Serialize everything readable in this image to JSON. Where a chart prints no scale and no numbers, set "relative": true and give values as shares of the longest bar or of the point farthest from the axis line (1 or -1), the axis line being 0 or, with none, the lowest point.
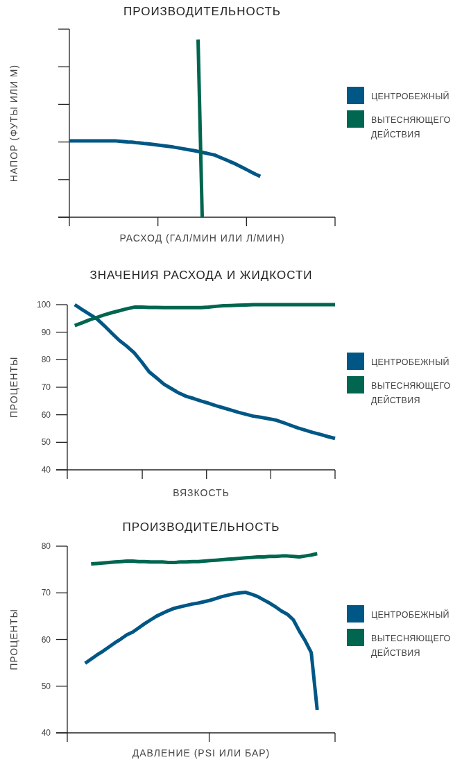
{
  "chart_data": [
    {
      "type": "line",
      "title": "ПРОИЗВОДИТЕЛЬНОСТЬ",
      "xlabel": "РАСХОД (ГАЛ/МИН ИЛИ Л/МИН)",
      "ylabel": "НАПОР (ФУТЫ ИЛИ М)",
      "relative": true,
      "tick_labels": false,
      "legend": "right",
      "line_style": "solid",
      "categories": [
        null,
        null,
        null,
        null,
        null,
        null,
        null,
        null,
        null,
        null,
        null,
        null,
        null,
        null,
        null,
        null,
        null,
        null,
        null,
        null,
        null,
        null,
        null,
        null,
        null,
        null,
        null,
        null,
        null,
        null,
        null,
        null,
        null,
        null,
        null,
        null,
        null,
        null,
        null,
        null,
        null,
        null,
        null,
        null,
        null,
        null,
        null,
        null,
        null,
        null,
        null,
        null,
        null,
        null,
        null,
        null,
        null,
        null,
        null,
        null,
        null,
        null,
        null,
        null,
        null
      ],
      "series": [
        {
          "name": "ЦЕНТРОБЕЖНЫЙ",
          "color": "#005785",
          "values": [
            0.43,
            0.43,
            0.43,
            0.43,
            0.43,
            0.43,
            0.43,
            0.43,
            0.43,
            0.43,
            0.43,
            0.43,
            0.428,
            0.426,
            0.424,
            0.423,
            0.42,
            0.418,
            0.415,
            0.413,
            0.41,
            0.407,
            0.404,
            0.401,
            0.398,
            0.395,
            0.391,
            0.387,
            0.383,
            0.379,
            0.375,
            0.37,
            0.365,
            0.36,
            0.355,
            0.35,
            0.34,
            0.33,
            0.32,
            0.31,
            0.3,
            0.288,
            0.276,
            0.264,
            0.252,
            0.24,
            0.23,
            null,
            null,
            null,
            null,
            null,
            null,
            null,
            null,
            null,
            null,
            null,
            null,
            null,
            null,
            null,
            null,
            null,
            null
          ]
        },
        {
          "name": "ВЫТЕСНЯЮЩЕГО ДЕЙСТВИЯ",
          "color": "#00664f",
          "values": [
            null,
            null,
            null,
            null,
            null,
            null,
            null,
            null,
            null,
            null,
            null,
            null,
            null,
            null,
            null,
            null,
            null,
            null,
            null,
            null,
            null,
            null,
            null,
            null,
            null,
            null,
            null,
            null,
            null,
            null,
            null,
            1,
            0,
            null,
            null,
            null,
            null,
            null,
            null,
            null,
            null,
            null,
            null,
            null,
            null,
            null,
            null,
            null,
            null,
            null,
            null,
            null,
            null,
            null,
            null,
            null,
            null,
            null,
            null,
            null,
            null,
            null,
            null,
            null,
            null
          ]
        }
      ]
    },
    {
      "type": "line",
      "title": "ЗНАЧЕНИЯ РАСХОДА И ЖИДКОСТИ",
      "xlabel": "ВЯЗКОСТЬ",
      "ylabel": "ПРОЦЕНТЫ",
      "ylim": [
        40,
        100
      ],
      "yticks": [
        40,
        50,
        60,
        70,
        80,
        90,
        100
      ],
      "tick_labels": "y",
      "legend": "right",
      "line_style": "solid",
      "categories": [
        null,
        null,
        null,
        null,
        null,
        null,
        null,
        null,
        null,
        null,
        null,
        null,
        null,
        null,
        null,
        null,
        null,
        null,
        null,
        null,
        null,
        null,
        null,
        null,
        null,
        null,
        null,
        null,
        null,
        null,
        null,
        null,
        null,
        null,
        null,
        null,
        null
      ],
      "series": [
        {
          "name": "ЦЕНТРОБЕЖНЫЙ",
          "color": "#005785",
          "values": [
            null,
            100,
            98.2,
            96.5,
            94.8,
            92.3,
            89.6,
            87,
            84.9,
            82.5,
            79.2,
            75.6,
            73.4,
            71.1,
            69.5,
            67.9,
            66.7,
            65.9,
            65,
            64.2,
            63.3,
            62.5,
            61.7,
            60.9,
            60.2,
            59.5,
            59.1,
            58.6,
            58.1,
            57.2,
            56.2,
            55.2,
            54.4,
            53.6,
            52.9,
            52.1,
            51.4
          ]
        },
        {
          "name": "ВЫТЕСНЯЮЩЕГО ДЕЙСТВИЯ",
          "color": "#00664f",
          "values": [
            null,
            92.4,
            93.4,
            94.5,
            95.4,
            96.3,
            97.1,
            97.8,
            98.5,
            99.1,
            99.1,
            99,
            99,
            98.9,
            98.9,
            98.9,
            98.9,
            98.9,
            98.9,
            99.1,
            99.4,
            99.6,
            99.7,
            99.8,
            99.9,
            100,
            100,
            100,
            100,
            100,
            100,
            100,
            100,
            100,
            100,
            100,
            100
          ]
        }
      ]
    },
    {
      "type": "line",
      "title": "ПРОИЗВОДИТЕЛЬНОСТЬ",
      "xlabel": "ДАВЛЕНИЕ (PSI ИЛИ БАР)",
      "ylabel": "ПРОЦЕНТЫ",
      "ylim": [
        40,
        80
      ],
      "yticks": [
        40,
        50,
        60,
        70,
        80
      ],
      "tick_labels": "y",
      "legend": "right",
      "line_style": "solid",
      "categories": [
        null,
        null,
        null,
        null,
        null,
        null,
        null,
        null,
        null,
        null,
        null,
        null,
        null,
        null,
        null,
        null,
        null,
        null,
        null,
        null,
        null,
        null,
        null,
        null,
        null,
        null,
        null,
        null,
        null,
        null,
        null,
        null,
        null,
        null,
        null,
        null,
        null,
        null,
        null,
        null,
        null,
        null,
        null,
        null,
        null,
        null
      ],
      "series": [
        {
          "name": "ЦЕНТРОБЕЖНЫЙ",
          "color": "#005785",
          "values": [
            null,
            null,
            null,
            54.9,
            55.8,
            56.7,
            57.5,
            58.4,
            59.3,
            60.1,
            61,
            61.6,
            62.5,
            63.4,
            64.2,
            65,
            65.6,
            66.2,
            66.7,
            67,
            67.3,
            67.6,
            67.8,
            68.1,
            68.4,
            68.8,
            69.2,
            69.5,
            69.8,
            70,
            70.1,
            69.7,
            69.2,
            68.5,
            67.8,
            67,
            66.1,
            65.4,
            64.2,
            61.8,
            59.7,
            57.2,
            44.9,
            null,
            null,
            null
          ]
        },
        {
          "name": "ВЫТЕСНЯЮЩЕГО ДЕЙСТВИЯ",
          "color": "#00664f",
          "values": [
            null,
            null,
            null,
            null,
            76.2,
            76.3,
            76.4,
            76.5,
            76.6,
            76.7,
            76.8,
            76.8,
            76.7,
            76.7,
            76.6,
            76.6,
            76.6,
            76.5,
            76.5,
            76.6,
            76.6,
            76.7,
            76.7,
            76.8,
            76.9,
            77,
            77.1,
            77.2,
            77.3,
            77.4,
            77.5,
            77.6,
            77.7,
            77.7,
            77.8,
            77.8,
            77.9,
            77.9,
            77.8,
            77.7,
            77.9,
            78.1,
            78.4,
            null,
            null,
            null
          ]
        }
      ]
    }
  ]
}
